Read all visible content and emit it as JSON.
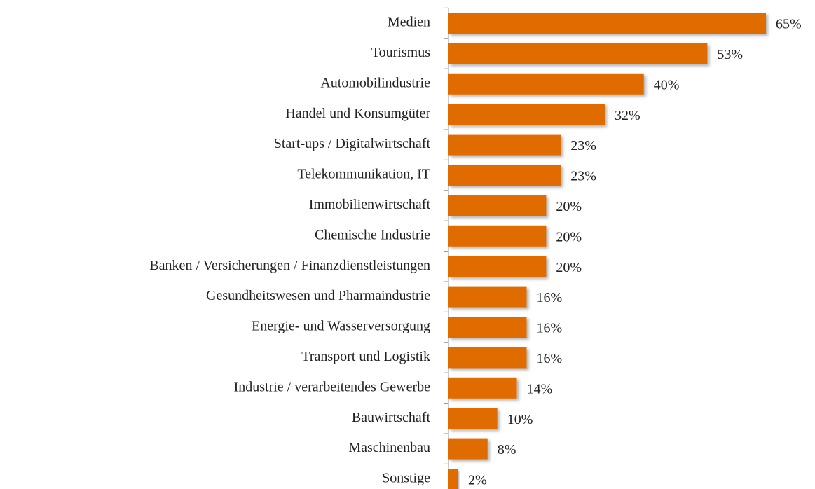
{
  "chart_data": {
    "type": "bar",
    "orientation": "horizontal",
    "color": "#e06c00",
    "categories": [
      "Medien",
      "Tourismus",
      "Automobilindustrie",
      "Handel und Konsumgüter",
      "Start-ups / Digitalwirtschaft",
      "Telekommunikation, IT",
      "Immobilienwirtschaft",
      "Chemische Industrie",
      "Banken / Versicherungen / Finanzdienstleistungen",
      "Gesundheitswesen und Pharmaindustrie",
      "Energie- und Wasserversorgung",
      "Transport und Logistik",
      "Industrie / verarbeitendes Gewerbe",
      "Bauwirtschaft",
      "Maschinenbau",
      "Sonstige"
    ],
    "values": [
      65,
      53,
      40,
      32,
      23,
      23,
      20,
      20,
      20,
      16,
      16,
      16,
      14,
      10,
      8,
      2
    ],
    "value_labels": [
      "65%",
      "53%",
      "40%",
      "32%",
      "23%",
      "23%",
      "20%",
      "20%",
      "20%",
      "16%",
      "16%",
      "16%",
      "14%",
      "10%",
      "8%",
      "2%"
    ]
  }
}
